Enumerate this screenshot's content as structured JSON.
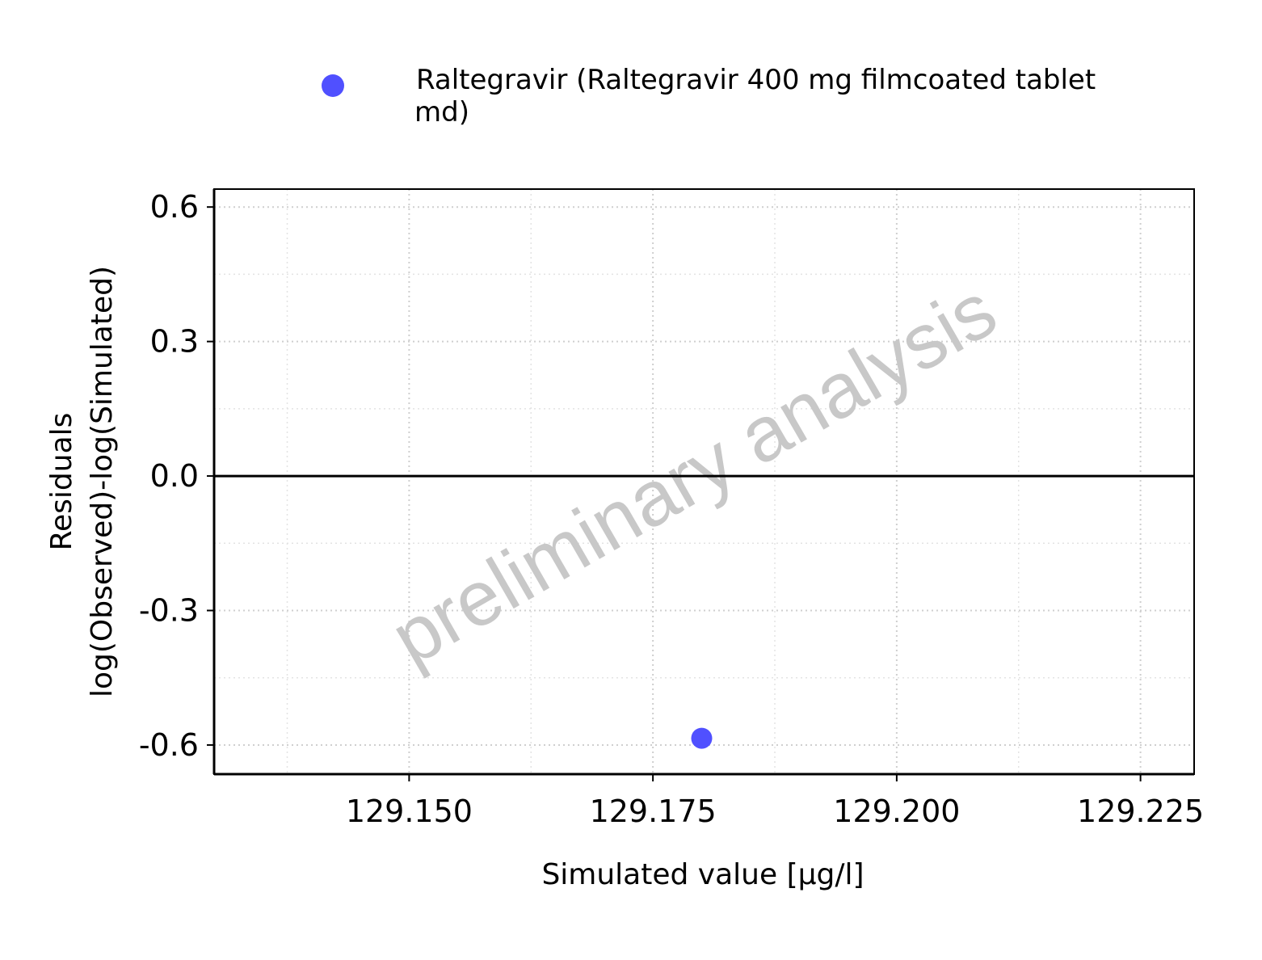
{
  "chart_data": {
    "type": "scatter",
    "xlabel": "Simulated value [µg/l]",
    "ylabel_lines": [
      "Residuals",
      "log(Observed)-log(Simulated)"
    ],
    "xlim": [
      129.13,
      129.2305
    ],
    "ylim": [
      -0.665,
      0.64
    ],
    "x_ticks": [
      129.15,
      129.175,
      129.2,
      129.225
    ],
    "x_tick_labels": [
      "129.150",
      "129.175",
      "129.200",
      "129.225"
    ],
    "y_ticks": [
      -0.6,
      -0.3,
      0.0,
      0.3,
      0.6
    ],
    "y_tick_labels": [
      "-0.6",
      "-0.3",
      "0.0",
      "0.3",
      "0.6"
    ],
    "reference_line_y": 0,
    "grid": true,
    "legend": {
      "placement": "top",
      "lines": [
        "Raltegravir (Raltegravir 400 mg filmcoated tablet",
        "md)"
      ]
    },
    "series": [
      {
        "name": "Raltegravir (Raltegravir 400 mg filmcoated tablet md)",
        "color": "#5050ff",
        "points": [
          {
            "x": 129.18,
            "y": -0.585
          }
        ]
      }
    ],
    "watermark": "preliminary analysis"
  }
}
